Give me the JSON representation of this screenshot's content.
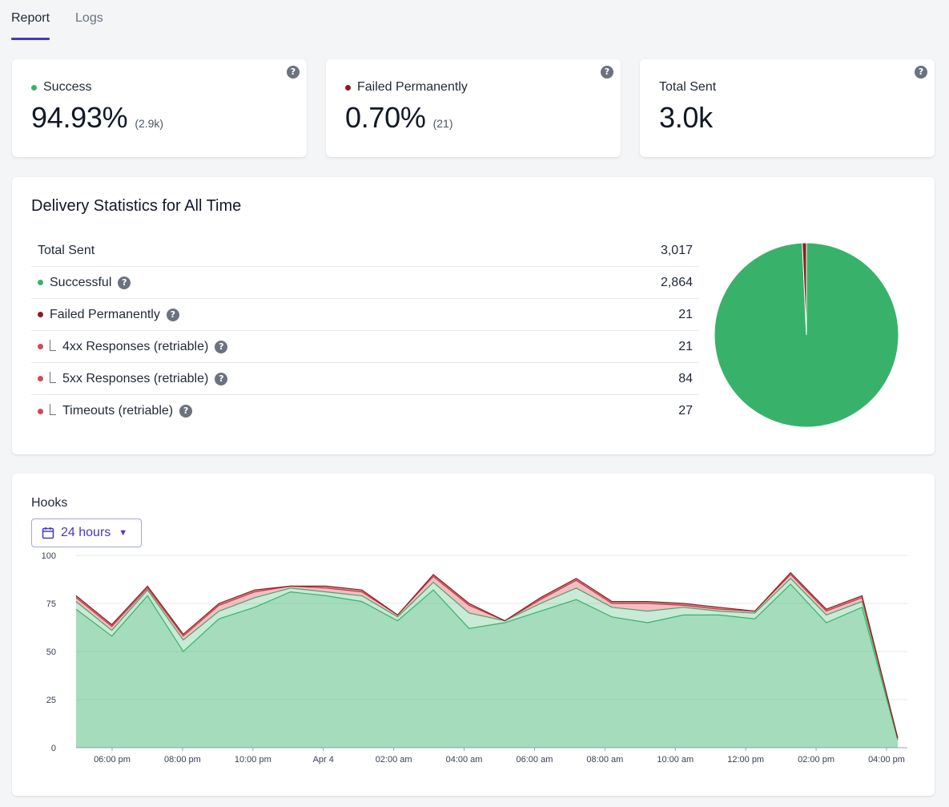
{
  "tabs": [
    {
      "label": "Report",
      "active": true
    },
    {
      "label": "Logs",
      "active": false
    }
  ],
  "stats": [
    {
      "label": "Success",
      "value": "94.93%",
      "sub": "(2.9k)",
      "dot_color": "#38b26a",
      "help": "?"
    },
    {
      "label": "Failed Permanently",
      "value": "0.70%",
      "sub": "(21)",
      "dot_color": "#8b1c22",
      "help": "?"
    },
    {
      "label": "Total Sent",
      "value": "3.0k",
      "sub": "",
      "help": "?"
    }
  ],
  "delivery": {
    "title": "Delivery Statistics for All Time",
    "rows": [
      {
        "label": "Total Sent",
        "value": "3,017"
      },
      {
        "label": "Successful",
        "value": "2,864",
        "dot_color": "#38b26a",
        "help": "?"
      },
      {
        "label": "Failed Permanently",
        "value": "21",
        "dot_color": "#8b1c22",
        "help": "?"
      },
      {
        "label": "4xx Responses (retriable)",
        "value": "21",
        "dot_color": "#d94550",
        "help": "?",
        "nested": true
      },
      {
        "label": "5xx Responses (retriable)",
        "value": "84",
        "dot_color": "#d94550",
        "help": "?",
        "nested": true
      },
      {
        "label": "Timeouts (retriable)",
        "value": "27",
        "dot_color": "#d94550",
        "help": "?",
        "nested": true
      }
    ],
    "pie": [
      {
        "label": "Successful",
        "value": 2864,
        "color": "#38b26a"
      },
      {
        "label": "Failed Permanently",
        "value": 21,
        "color": "#8b1c22"
      }
    ]
  },
  "hooks": {
    "title": "Hooks",
    "range_label": "24 hours",
    "calendar_icon": "calendar-icon",
    "caret_icon": "caret-down-icon"
  },
  "chart_data": {
    "type": "area",
    "ylim": [
      0,
      100
    ],
    "yticks": [
      0,
      25,
      50,
      75,
      100
    ],
    "x_tick_labels": [
      "06:00 pm",
      "08:00 pm",
      "10:00 pm",
      "Apr 4",
      "02:00 am",
      "04:00 am",
      "06:00 am",
      "08:00 am",
      "10:00 am",
      "12:00 pm",
      "02:00 pm",
      "04:00 pm"
    ],
    "x_points": 24,
    "series": [
      {
        "color": "#38b26a",
        "values": [
          72,
          58,
          79,
          50,
          67,
          73,
          81,
          79,
          76,
          66,
          82,
          62,
          65,
          71,
          77,
          68,
          65,
          69,
          69,
          67,
          85,
          65,
          73,
          4
        ]
      },
      {
        "color": "#38b26a",
        "values": [
          4,
          3,
          3,
          6,
          4,
          5,
          2,
          2,
          3,
          2,
          4,
          8,
          1,
          4,
          6,
          5,
          6,
          4,
          2,
          3,
          3,
          4,
          3,
          1
        ]
      },
      {
        "color": "#d94550",
        "values": [
          2,
          2,
          1,
          2,
          3,
          3,
          1,
          2,
          2,
          1,
          3,
          4,
          0,
          2,
          4,
          2,
          4,
          1,
          1,
          1,
          2,
          2,
          2,
          0
        ]
      },
      {
        "color": "#8b1c22",
        "values": [
          1,
          1,
          1,
          1,
          1,
          1,
          0,
          1,
          1,
          0,
          1,
          1,
          0,
          1,
          1,
          1,
          1,
          1,
          1,
          0,
          1,
          1,
          1,
          0
        ]
      }
    ]
  }
}
